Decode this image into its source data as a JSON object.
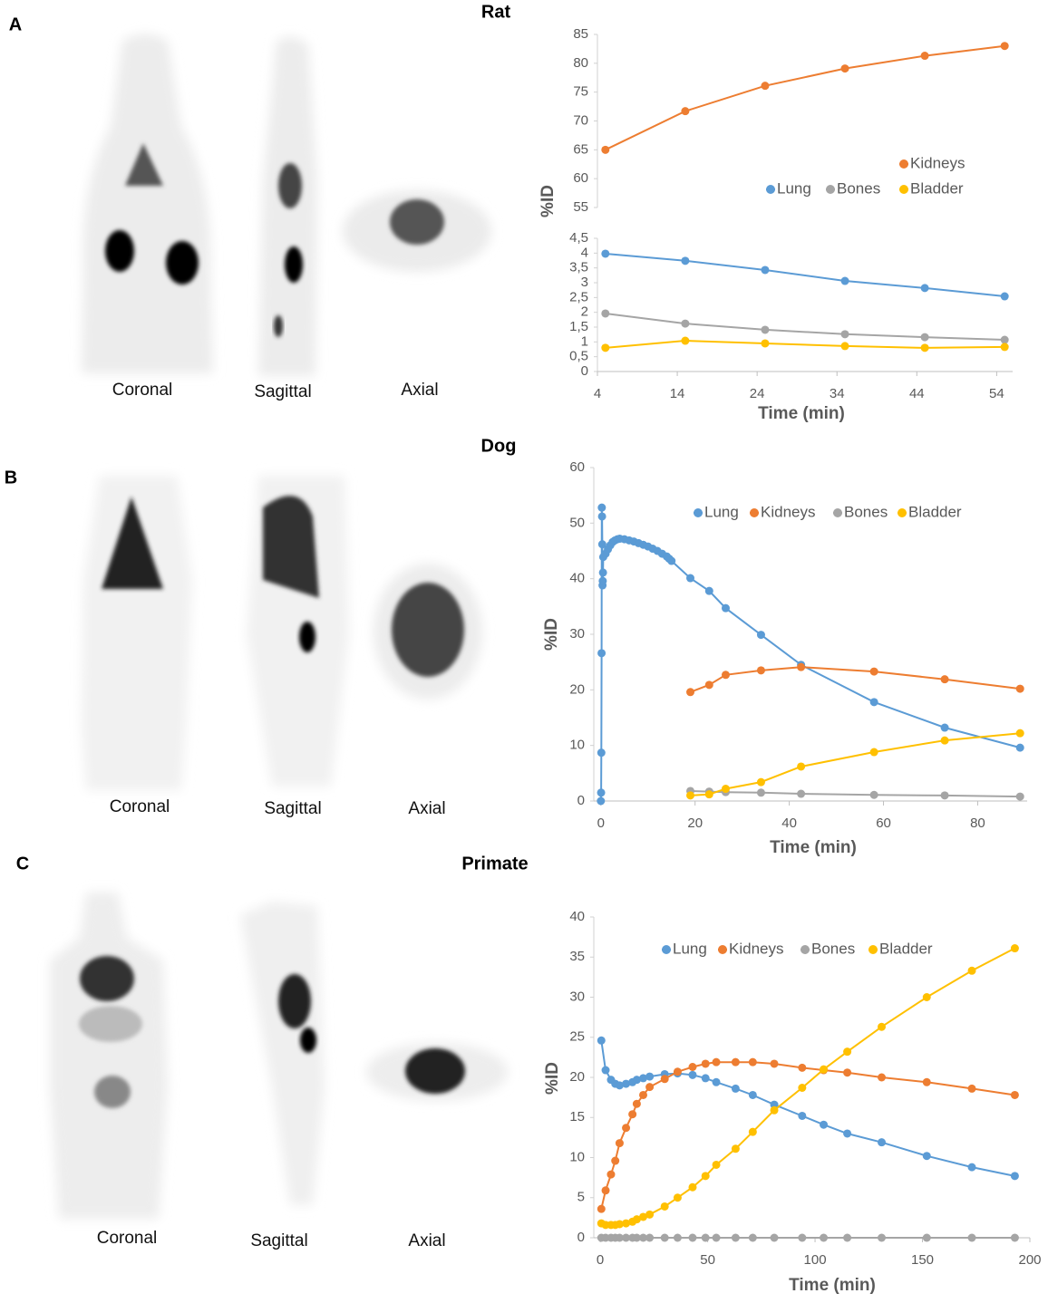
{
  "panels": [
    {
      "letter": "A",
      "views": [
        "Coronal",
        "Sagittal",
        "Axial"
      ]
    },
    {
      "letter": "B",
      "views": [
        "Coronal",
        "Sagittal",
        "Axial"
      ]
    },
    {
      "letter": "C",
      "views": [
        "Coronal",
        "Sagittal",
        "Axial"
      ]
    }
  ],
  "chart_data": [
    {
      "type": "line",
      "title": "Rat",
      "x_label": "Time (min)",
      "y_label": "%ID",
      "x": [
        5,
        15,
        25,
        35,
        45,
        55
      ],
      "xlim": [
        4,
        56
      ],
      "xticks": [
        4,
        14,
        24,
        34,
        44,
        54
      ],
      "ylim": [
        0,
        4.5
      ],
      "yticks": [
        0,
        {
          "value": 0.5,
          "label": "0,5"
        },
        1,
        {
          "value": 1.5,
          "label": "1,5"
        },
        2,
        {
          "value": 2.5,
          "label": "2,5"
        },
        3,
        {
          "value": 3.5,
          "label": "3,5"
        },
        4,
        {
          "value": 4.5,
          "label": "4,5"
        }
      ],
      "y2lim": [
        55,
        85
      ],
      "y2ticks": [
        55,
        60,
        65,
        70,
        75,
        80,
        85
      ],
      "series": [
        {
          "name": "Lung",
          "color": "#5b9bd5",
          "values": [
            3.98,
            3.74,
            3.43,
            3.06,
            2.82,
            2.54
          ]
        },
        {
          "name": "Kidneys",
          "color": "#ed7d31",
          "axis": "y2",
          "values": [
            65.0,
            71.7,
            76.1,
            79.1,
            81.3,
            83.0
          ]
        },
        {
          "name": "Bones",
          "color": "#a5a5a5",
          "values": [
            1.96,
            1.62,
            1.41,
            1.26,
            1.16,
            1.07
          ]
        },
        {
          "name": "Bladder",
          "color": "#ffc000",
          "values": [
            0.8,
            1.04,
            0.95,
            0.86,
            0.8,
            0.83
          ]
        }
      ]
    },
    {
      "type": "line",
      "title": "Dog",
      "x_label": "Time (min)",
      "y_label": "%ID",
      "x": [
        0,
        0.05,
        0.1,
        0.15,
        0.2,
        0.25,
        0.3,
        0.35,
        0.4,
        0.45,
        0.5,
        1,
        1.5,
        2,
        2.5,
        3,
        3.5,
        4,
        5,
        6,
        7,
        8,
        9,
        10,
        11,
        12,
        13,
        14,
        14.5,
        15,
        19,
        23,
        26.5,
        34,
        42.5,
        58,
        73,
        89
      ],
      "xlim": [
        -1.5,
        90.5
      ],
      "xticks": [
        0,
        20,
        40,
        60,
        80
      ],
      "ylim": [
        0,
        60
      ],
      "yticks": [
        0,
        10,
        20,
        30,
        40,
        50,
        60
      ],
      "series": [
        {
          "name": "Lung",
          "color": "#5b9bd5",
          "values": [
            0,
            1.5,
            8.7,
            26.6,
            52.8,
            51.2,
            46.2,
            38.8,
            39.6,
            41.1,
            43.9,
            44.5,
            45.3,
            46,
            46.6,
            46.9,
            47.1,
            47.2,
            47.1,
            46.9,
            46.7,
            46.4,
            46.1,
            45.8,
            45.4,
            45,
            44.5,
            44,
            43.6,
            43.2,
            40.1,
            37.8,
            34.7,
            29.9,
            24.5,
            17.8,
            13.2,
            9.6
          ]
        },
        {
          "name": "Kidneys",
          "color": "#ed7d31",
          "values": [
            null,
            null,
            null,
            null,
            null,
            null,
            null,
            null,
            null,
            null,
            null,
            null,
            null,
            null,
            null,
            null,
            null,
            null,
            null,
            null,
            null,
            null,
            null,
            null,
            null,
            null,
            null,
            null,
            null,
            null,
            19.6,
            20.9,
            22.7,
            23.5,
            24.1,
            23.3,
            21.9,
            20.2
          ]
        },
        {
          "name": "Bones",
          "color": "#a5a5a5",
          "values": [
            null,
            null,
            null,
            null,
            null,
            null,
            null,
            null,
            null,
            null,
            null,
            null,
            null,
            null,
            null,
            null,
            null,
            null,
            null,
            null,
            null,
            null,
            null,
            null,
            null,
            null,
            null,
            null,
            null,
            null,
            1.8,
            1.7,
            1.6,
            1.5,
            1.3,
            1.1,
            1.0,
            0.8
          ]
        },
        {
          "name": "Bladder",
          "color": "#ffc000",
          "values": [
            null,
            null,
            null,
            null,
            null,
            null,
            null,
            null,
            null,
            null,
            null,
            null,
            null,
            null,
            null,
            null,
            null,
            null,
            null,
            null,
            null,
            null,
            null,
            null,
            null,
            null,
            null,
            null,
            null,
            null,
            1.0,
            1.2,
            2.2,
            3.4,
            6.2,
            8.8,
            10.9,
            12.2
          ]
        }
      ]
    },
    {
      "type": "line",
      "title": "Primate",
      "x_label": "Time (min)",
      "y_label": "%ID",
      "x": [
        0.5,
        2.5,
        5,
        7,
        9,
        12,
        15,
        17,
        20,
        23,
        30,
        36,
        43,
        49,
        54,
        63,
        71,
        81,
        94,
        104,
        115,
        131,
        152,
        173,
        193
      ],
      "xlim": [
        -3,
        200
      ],
      "xticks": [
        0,
        50,
        100,
        150,
        200
      ],
      "ylim": [
        0,
        40
      ],
      "yticks": [
        0,
        5,
        10,
        15,
        20,
        25,
        30,
        35,
        40
      ],
      "series": [
        {
          "name": "Lung",
          "color": "#5b9bd5",
          "values": [
            24.6,
            20.9,
            19.7,
            19.2,
            19.0,
            19.2,
            19.4,
            19.7,
            19.9,
            20.1,
            20.4,
            20.5,
            20.3,
            19.9,
            19.4,
            18.6,
            17.8,
            16.6,
            15.2,
            14.1,
            13.0,
            11.9,
            10.2,
            8.8,
            7.7
          ]
        },
        {
          "name": "Kidneys",
          "color": "#ed7d31",
          "values": [
            3.6,
            5.9,
            7.9,
            9.6,
            11.8,
            13.7,
            15.4,
            16.7,
            17.8,
            18.8,
            19.8,
            20.7,
            21.3,
            21.7,
            21.9,
            21.9,
            21.9,
            21.7,
            21.2,
            20.9,
            20.6,
            20.0,
            19.4,
            18.6,
            17.8
          ]
        },
        {
          "name": "Bones",
          "color": "#a5a5a5",
          "values": [
            0,
            0,
            0,
            0,
            0,
            0,
            0,
            0,
            0,
            0,
            0,
            0,
            0,
            0,
            0,
            0,
            0,
            0,
            0,
            0,
            0,
            0,
            0,
            0,
            0
          ]
        },
        {
          "name": "Bladder",
          "color": "#ffc000",
          "values": [
            1.8,
            1.6,
            1.6,
            1.6,
            1.7,
            1.8,
            2.0,
            2.3,
            2.6,
            2.9,
            3.9,
            5.0,
            6.3,
            7.7,
            9.1,
            11.1,
            13.2,
            15.9,
            18.7,
            21.0,
            23.2,
            26.3,
            30.0,
            33.3,
            36.1
          ]
        }
      ]
    }
  ]
}
